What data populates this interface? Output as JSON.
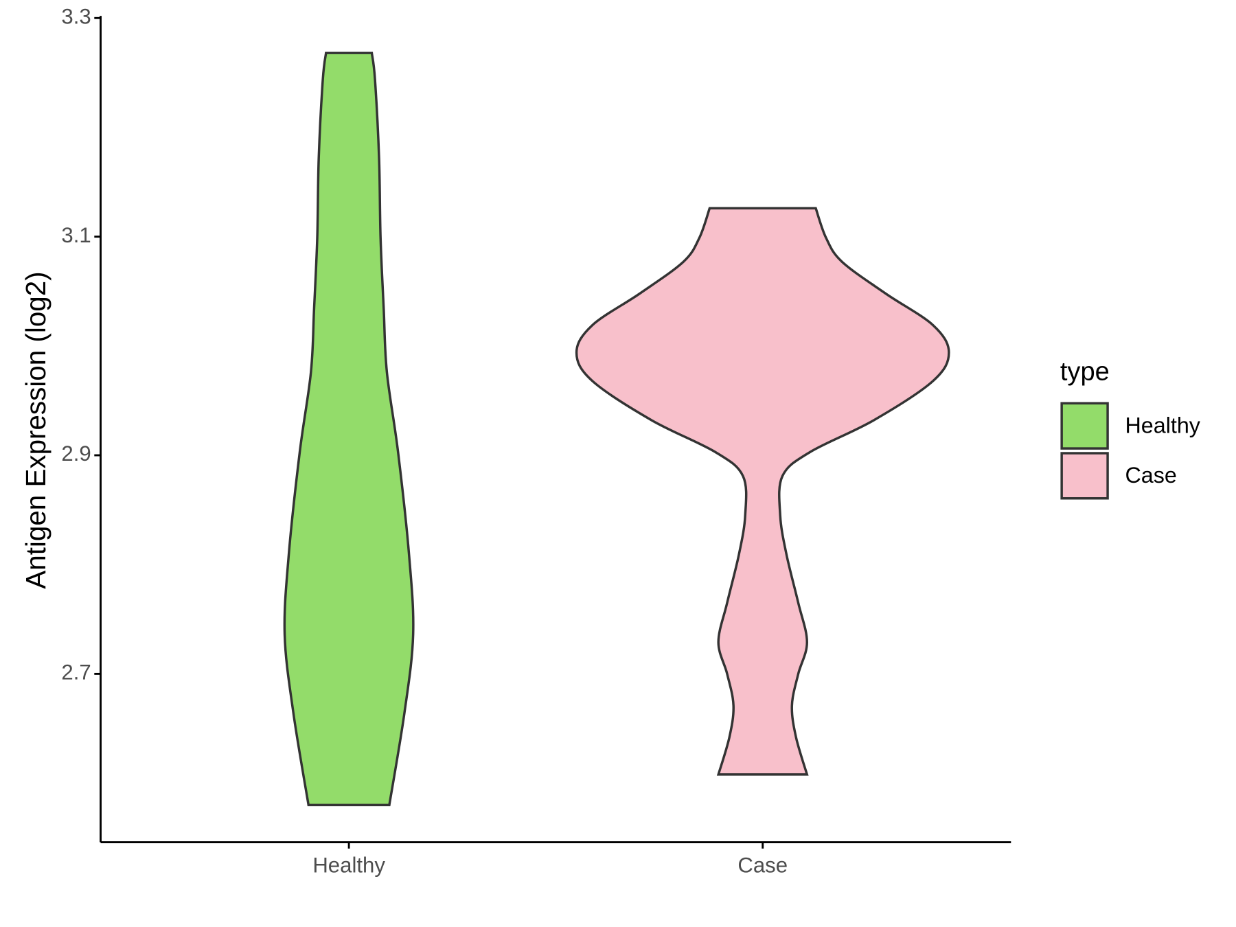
{
  "chart_data": {
    "type": "violin",
    "y_label": "Antigen Expression (log2)",
    "categories": [
      "Healthy",
      "Case"
    ],
    "ylim": [
      2.546,
      3.302
    ],
    "yticks": [
      2.7,
      2.9,
      3.1,
      3.3
    ],
    "legend_title": "type",
    "legend": "right",
    "series": [
      {
        "name": "Healthy",
        "color": "#93dc6a",
        "y": [
          3.268,
          3.244,
          3.172,
          3.099,
          3.034,
          2.976,
          2.903,
          2.809,
          2.736,
          2.664,
          2.58
        ],
        "widths": [
          0.123,
          0.14,
          0.162,
          0.17,
          0.187,
          0.204,
          0.264,
          0.323,
          0.345,
          0.298,
          0.217
        ]
      },
      {
        "name": "Case",
        "color": "#f8c0cb",
        "y": [
          3.126,
          3.099,
          3.077,
          3.048,
          3.019,
          2.994,
          2.968,
          2.932,
          2.903,
          2.881,
          2.845,
          2.809,
          2.765,
          2.729,
          2.7,
          2.671,
          2.642,
          2.608
        ],
        "widths": [
          0.285,
          0.34,
          0.426,
          0.66,
          0.915,
          1.0,
          0.915,
          0.596,
          0.255,
          0.106,
          0.094,
          0.128,
          0.191,
          0.238,
          0.191,
          0.157,
          0.179,
          0.238
        ]
      }
    ]
  }
}
